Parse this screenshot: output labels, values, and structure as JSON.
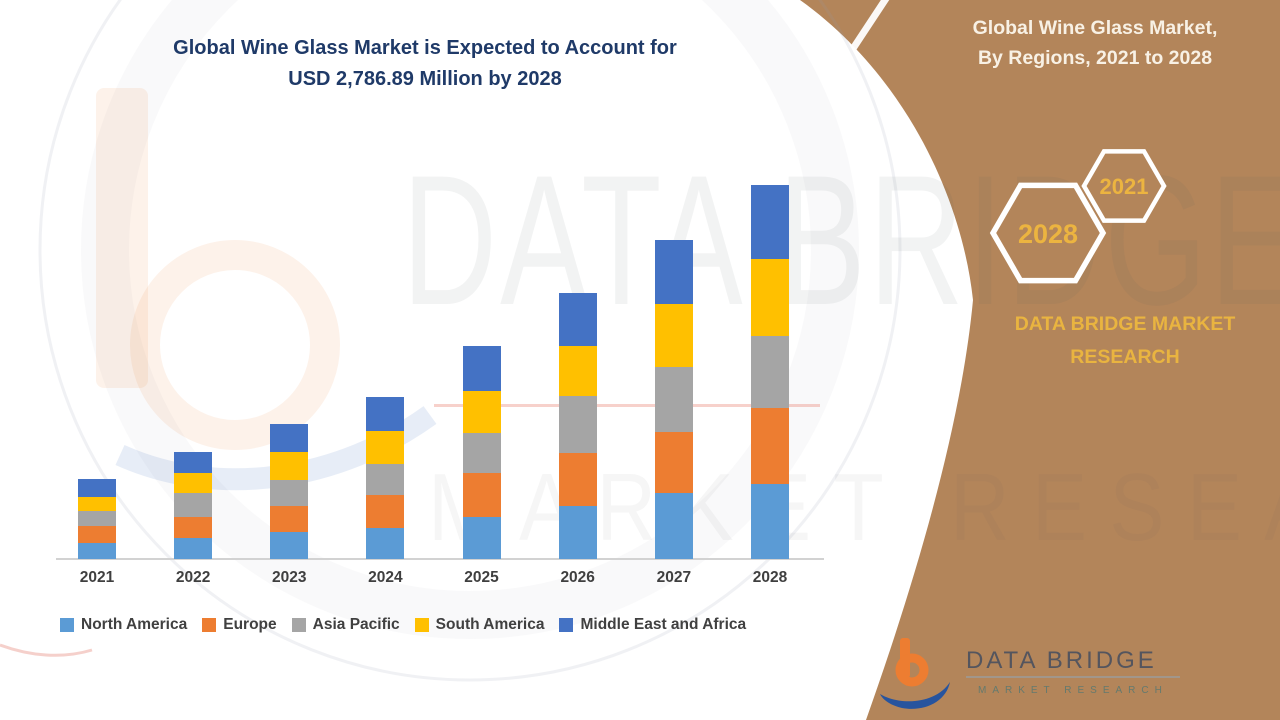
{
  "title": {
    "line1": "Global Wine Glass Market is Expected to Account for",
    "line2": "USD 2,786.89 Million by 2028"
  },
  "side_panel": {
    "heading_line1": "Global Wine Glass Market,",
    "heading_line2": "By Regions, 2021 to 2028",
    "badge_end_year": "2028",
    "badge_start_year": "2021",
    "brand_line1": "DATA BRIDGE MARKET",
    "brand_line2": "RESEARCH",
    "bg_color": "#b3855a",
    "gold_color": "#ECB440"
  },
  "footer_logo": {
    "name": "DATA BRIDGE",
    "tagline": "MARKET RESEARCH"
  },
  "watermark": {
    "line1": "DATA BRIDGE",
    "line2": "MARKET RESEARCH"
  },
  "chart_data": {
    "type": "bar",
    "stacked": true,
    "title": "Global Wine Glass Market is Expected to Account for USD 2,786.89 Million by 2028",
    "unit": "USD Million",
    "categories": [
      "2021",
      "2022",
      "2023",
      "2024",
      "2025",
      "2026",
      "2027",
      "2028"
    ],
    "series": [
      {
        "name": "North America",
        "color": "#5B9BD5",
        "values": [
          116.4,
          156.6,
          199.1,
          231.2,
          310.2,
          398.2,
          489.9,
          557.0
        ]
      },
      {
        "name": "Europe",
        "color": "#ED7D31",
        "values": [
          132.0,
          158.9,
          199.1,
          243.8,
          328.1,
          392.2,
          454.9,
          571.2
        ]
      },
      {
        "name": "Asia Pacific",
        "color": "#A5A5A5",
        "values": [
          106.6,
          173.8,
          193.9,
          233.4,
          298.3,
          422.8,
          484.7,
          534.8
        ]
      },
      {
        "name": "South America",
        "color": "#FFC000",
        "values": [
          109.6,
          149.1,
          203.6,
          249.1,
          318.4,
          372.9,
          467.5,
          572.0
        ]
      },
      {
        "name": "Middle East and Africa",
        "color": "#4472C4",
        "values": [
          132.0,
          156.6,
          211.0,
          248.3,
          335.6,
          396.0,
          477.3,
          551.89
        ]
      }
    ],
    "totals": [
      596.6,
      795.0,
      1006.7,
      1205.8,
      1590.6,
      1982.1,
      2374.3,
      2786.89
    ],
    "ylim": [
      0,
      2800
    ],
    "grid": false,
    "y_axis_visible": false,
    "legend_position": "bottom"
  }
}
